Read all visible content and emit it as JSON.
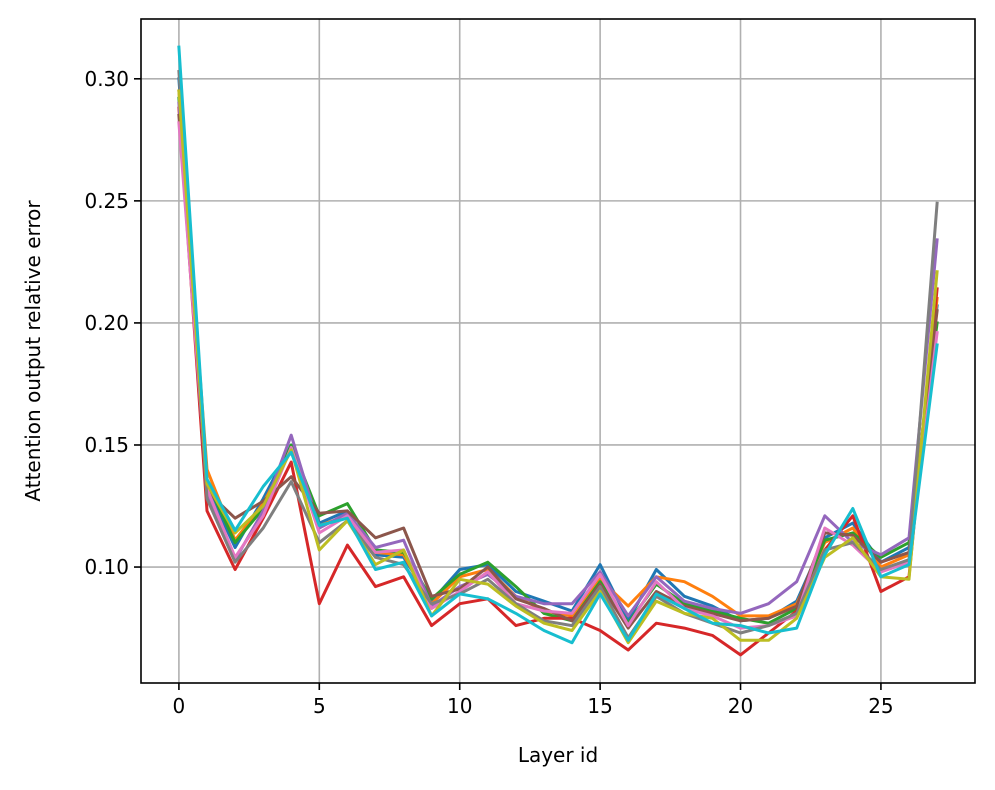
{
  "chart_data": {
    "type": "line",
    "title": "",
    "xlabel": "Layer id",
    "ylabel": "Attention output relative error",
    "xlim": [
      -1.35,
      28.35
    ],
    "ylim": [
      0.0525,
      0.3245
    ],
    "xticks": [
      0,
      5,
      10,
      15,
      20,
      25
    ],
    "xtick_labels": [
      "0",
      "5",
      "10",
      "15",
      "20",
      "25"
    ],
    "yticks": [
      0.1,
      0.15,
      0.2,
      0.25,
      0.3
    ],
    "ytick_labels": [
      "0.10",
      "0.15",
      "0.20",
      "0.25",
      "0.30"
    ],
    "grid": true,
    "legend": "none",
    "x": [
      0,
      1,
      2,
      3,
      4,
      5,
      6,
      7,
      8,
      9,
      10,
      11,
      12,
      13,
      14,
      15,
      16,
      17,
      18,
      19,
      20,
      21,
      22,
      23,
      24,
      25,
      26,
      27
    ],
    "series": [
      {
        "color": "#1f77b4",
        "values": [
          0.3,
          0.133,
          0.108,
          0.128,
          0.15,
          0.118,
          0.123,
          0.105,
          0.104,
          0.086,
          0.099,
          0.101,
          0.09,
          0.086,
          0.082,
          0.101,
          0.078,
          0.099,
          0.088,
          0.084,
          0.078,
          0.079,
          0.086,
          0.112,
          0.118,
          0.102,
          0.108,
          0.207
        ]
      },
      {
        "color": "#ff7f0e",
        "values": [
          0.295,
          0.14,
          0.111,
          0.126,
          0.148,
          0.117,
          0.121,
          0.106,
          0.105,
          0.085,
          0.096,
          0.099,
          0.088,
          0.082,
          0.08,
          0.095,
          0.084,
          0.096,
          0.094,
          0.088,
          0.08,
          0.08,
          0.085,
          0.11,
          0.116,
          0.1,
          0.105,
          0.21
        ]
      },
      {
        "color": "#2ca02c",
        "values": [
          0.292,
          0.135,
          0.11,
          0.124,
          0.15,
          0.121,
          0.126,
          0.107,
          0.106,
          0.087,
          0.097,
          0.102,
          0.092,
          0.081,
          0.078,
          0.094,
          0.077,
          0.093,
          0.085,
          0.082,
          0.079,
          0.077,
          0.083,
          0.111,
          0.114,
          0.104,
          0.11,
          0.2
        ]
      },
      {
        "color": "#d62728",
        "values": [
          0.288,
          0.123,
          0.099,
          0.12,
          0.143,
          0.085,
          0.109,
          0.092,
          0.096,
          0.076,
          0.085,
          0.087,
          0.076,
          0.079,
          0.079,
          0.074,
          0.066,
          0.077,
          0.075,
          0.072,
          0.064,
          0.073,
          0.082,
          0.107,
          0.121,
          0.09,
          0.096,
          0.214
        ]
      },
      {
        "color": "#9467bd",
        "values": [
          0.29,
          0.13,
          0.103,
          0.123,
          0.154,
          0.116,
          0.122,
          0.108,
          0.111,
          0.084,
          0.092,
          0.097,
          0.088,
          0.085,
          0.085,
          0.098,
          0.08,
          0.096,
          0.086,
          0.083,
          0.081,
          0.085,
          0.094,
          0.121,
          0.11,
          0.105,
          0.112,
          0.234
        ]
      },
      {
        "color": "#8c564b",
        "values": [
          0.285,
          0.131,
          0.12,
          0.127,
          0.137,
          0.122,
          0.123,
          0.112,
          0.116,
          0.088,
          0.091,
          0.1,
          0.087,
          0.083,
          0.078,
          0.093,
          0.075,
          0.09,
          0.084,
          0.081,
          0.078,
          0.079,
          0.084,
          0.114,
          0.113,
          0.102,
          0.106,
          0.205
        ]
      },
      {
        "color": "#e377c2",
        "values": [
          0.282,
          0.132,
          0.104,
          0.121,
          0.149,
          0.114,
          0.121,
          0.106,
          0.107,
          0.083,
          0.09,
          0.098,
          0.085,
          0.082,
          0.081,
          0.097,
          0.076,
          0.094,
          0.083,
          0.08,
          0.075,
          0.076,
          0.08,
          0.116,
          0.109,
          0.098,
          0.102,
          0.196
        ]
      },
      {
        "color": "#7f7f7f",
        "values": [
          0.303,
          0.128,
          0.102,
          0.116,
          0.135,
          0.11,
          0.119,
          0.104,
          0.101,
          0.085,
          0.089,
          0.095,
          0.085,
          0.078,
          0.076,
          0.092,
          0.071,
          0.088,
          0.081,
          0.077,
          0.073,
          0.076,
          0.081,
          0.107,
          0.11,
          0.099,
          0.103,
          0.249
        ]
      },
      {
        "color": "#bcbd22",
        "values": [
          0.295,
          0.134,
          0.114,
          0.125,
          0.148,
          0.107,
          0.119,
          0.101,
          0.107,
          0.08,
          0.095,
          0.093,
          0.084,
          0.077,
          0.074,
          0.09,
          0.069,
          0.086,
          0.081,
          0.079,
          0.07,
          0.07,
          0.079,
          0.104,
          0.112,
          0.096,
          0.095,
          0.221
        ]
      },
      {
        "color": "#17becf",
        "values": [
          0.313,
          0.136,
          0.115,
          0.133,
          0.147,
          0.117,
          0.12,
          0.099,
          0.102,
          0.08,
          0.089,
          0.087,
          0.081,
          0.074,
          0.069,
          0.089,
          0.07,
          0.089,
          0.083,
          0.077,
          0.076,
          0.073,
          0.075,
          0.105,
          0.124,
          0.096,
          0.101,
          0.191
        ]
      }
    ]
  }
}
